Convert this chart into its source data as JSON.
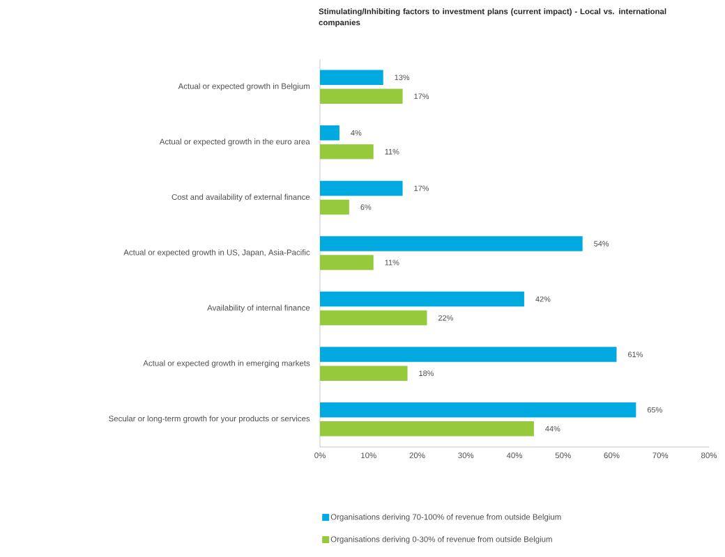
{
  "chart_data": {
    "type": "bar",
    "orientation": "horizontal",
    "title": "Stimulating/Inhibiting factors to investment plans (current impact) - Local vs. international companies",
    "categories": [
      "Actual or expected growth in Belgium",
      "Actual or expected growth in the euro area",
      "Cost and availability of external finance",
      "Actual or expected growth in US, Japan, Asia-Pacific",
      "Availability of internal finance",
      "Actual or expected growth in emerging markets",
      "Secular or long-term growth for your products or services"
    ],
    "series": [
      {
        "name": "Organisations deriving 70-100% of revenue from outside Belgium",
        "color": "#00a9e0",
        "values": [
          13,
          4,
          17,
          54,
          42,
          61,
          65
        ],
        "value_labels": [
          "13%",
          "4%",
          "17%",
          "54%",
          "42%",
          "61%",
          "65%"
        ]
      },
      {
        "name": "Organisations deriving 0-30% of revenue from outside Belgium",
        "color": "#97c93d",
        "values": [
          17,
          11,
          6,
          11,
          22,
          18,
          44
        ],
        "value_labels": [
          "17%",
          "11%",
          "6%",
          "11%",
          "22%",
          "18%",
          "44%"
        ]
      }
    ],
    "xlim": [
      0,
      80
    ],
    "xticks": [
      {
        "value": 0,
        "label": "0%"
      },
      {
        "value": 10,
        "label": "10%"
      },
      {
        "value": 20,
        "label": "20%"
      },
      {
        "value": 30,
        "label": "30%"
      },
      {
        "value": 40,
        "label": "40%"
      },
      {
        "value": 50,
        "label": "50%"
      },
      {
        "value": 60,
        "label": "60%"
      },
      {
        "value": 70,
        "label": "70%"
      },
      {
        "value": 80,
        "label": "80%"
      }
    ],
    "legend": "bottom",
    "grid": false
  }
}
